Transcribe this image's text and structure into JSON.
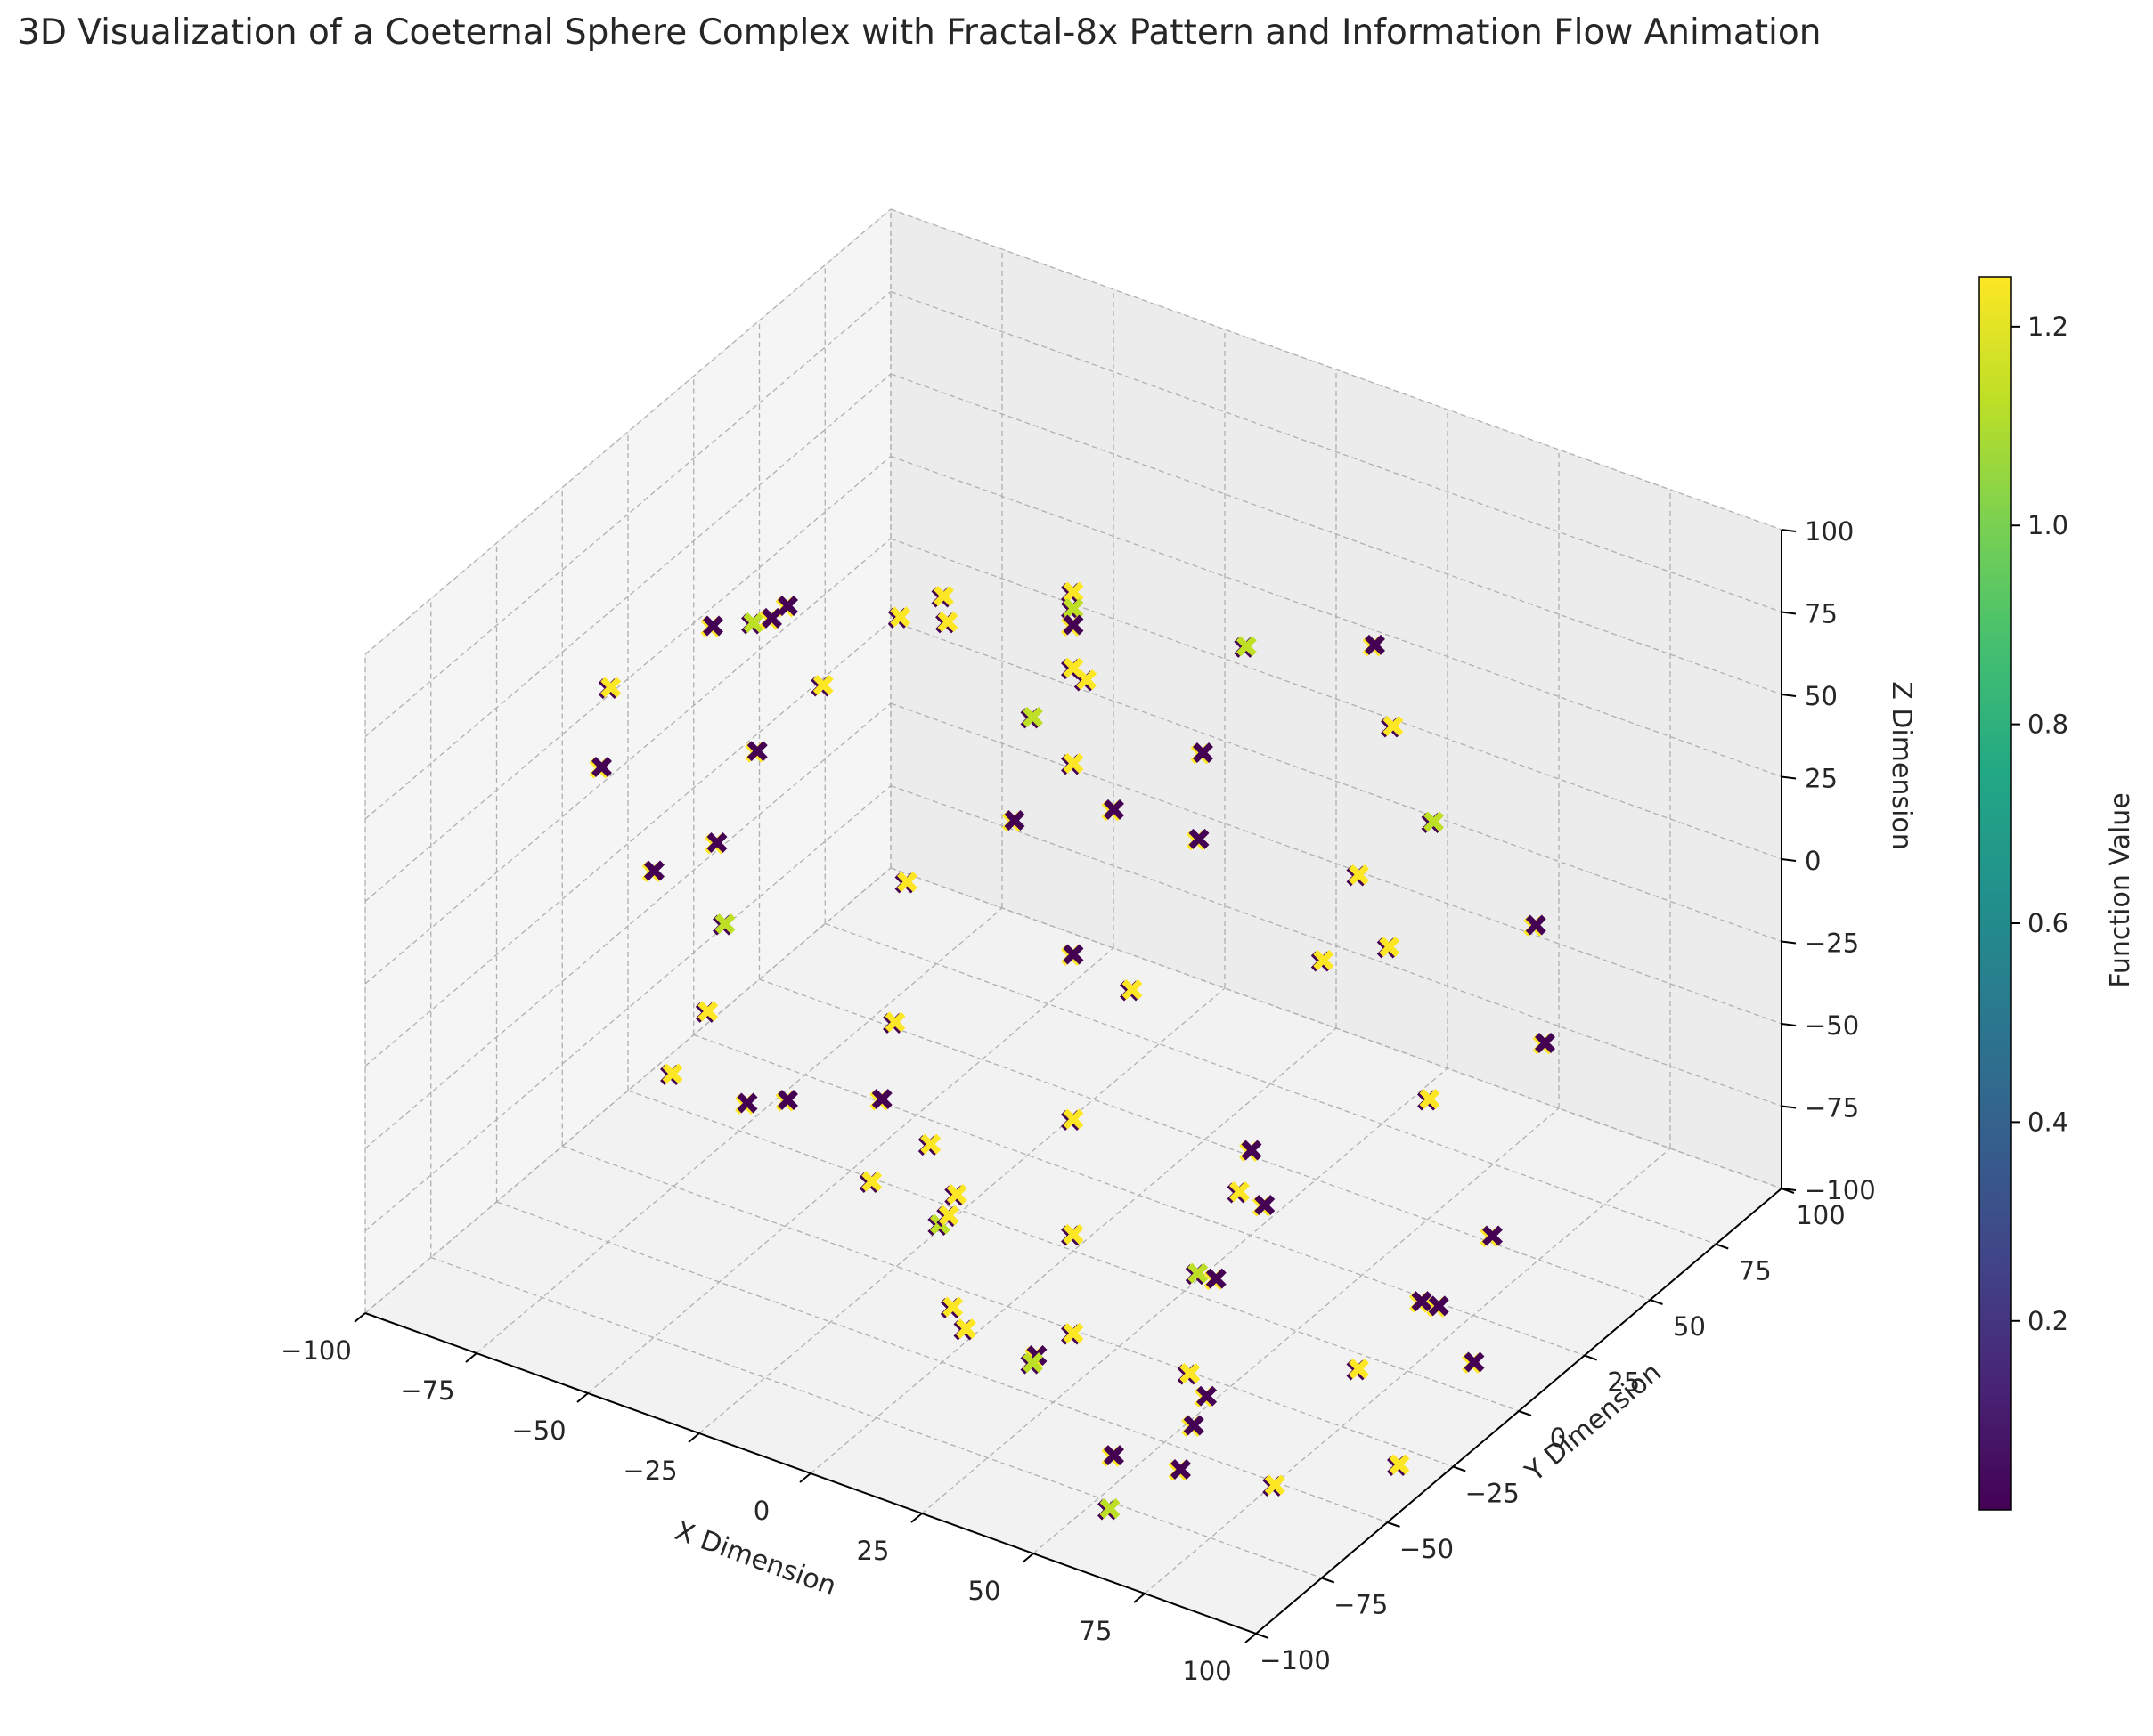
{
  "chart_data": {
    "type": "scatter",
    "title": "3D Visualization of a Coeternal Sphere Complex with Fractal-8x Pattern and Information Flow Animation",
    "xlabel": "X Dimension",
    "ylabel": "Y Dimension",
    "zlabel": "Z Dimension",
    "xlim": [
      -100,
      100
    ],
    "ylim": [
      -100,
      100
    ],
    "zlim": [
      -100,
      100
    ],
    "xticks": [
      "−100",
      "−75",
      "−50",
      "−25",
      "0",
      "25",
      "50",
      "75",
      "100"
    ],
    "yticks": [
      "−100",
      "−75",
      "−50",
      "−25",
      "0",
      "25",
      "50",
      "75",
      "100"
    ],
    "zticks": [
      "−100",
      "−75",
      "−50",
      "−25",
      "0",
      "25",
      "50",
      "75",
      "100"
    ],
    "marker": "x",
    "colormap": "viridis",
    "grid": true,
    "colorbar": {
      "label": "Function Value",
      "ticks": [
        "0.2",
        "0.4",
        "0.6",
        "0.8",
        "1.0",
        "1.2"
      ],
      "range": [
        0.01,
        1.25
      ]
    },
    "points": [
      {
        "x": 0,
        "y": 0,
        "z": 100,
        "v": 1.2
      },
      {
        "x": 0,
        "y": 0,
        "z": 95,
        "v": 1.15
      },
      {
        "x": 0,
        "y": 0,
        "z": 90,
        "v": 0.05
      },
      {
        "x": -50,
        "y": -30,
        "z": 88,
        "v": 0.05
      },
      {
        "x": -30,
        "y": -15,
        "z": 88,
        "v": 1.2
      },
      {
        "x": 30,
        "y": 15,
        "z": 88,
        "v": 1.1
      },
      {
        "x": 50,
        "y": 30,
        "z": 88,
        "v": 0.05
      },
      {
        "x": -60,
        "y": -20,
        "z": 75,
        "v": 1.15
      },
      {
        "x": -35,
        "y": 10,
        "z": 75,
        "v": 1.2
      },
      {
        "x": 0,
        "y": 0,
        "z": 77,
        "v": 1.2
      },
      {
        "x": 35,
        "y": -10,
        "z": 75,
        "v": 0.05
      },
      {
        "x": 60,
        "y": 20,
        "z": 75,
        "v": 1.2
      },
      {
        "x": 0,
        "y": 5,
        "z": 70,
        "v": 1.2
      },
      {
        "x": -75,
        "y": -10,
        "z": 60,
        "v": 0.05
      },
      {
        "x": -70,
        "y": 10,
        "z": 55,
        "v": 0.05
      },
      {
        "x": -40,
        "y": 20,
        "z": 58,
        "v": 1.2
      },
      {
        "x": -15,
        "y": 10,
        "z": 48,
        "v": 1.15
      },
      {
        "x": 15,
        "y": -10,
        "z": 48,
        "v": 0.05
      },
      {
        "x": 40,
        "y": -20,
        "z": 58,
        "v": 0.05
      },
      {
        "x": 75,
        "y": 10,
        "z": 60,
        "v": 1.15
      },
      {
        "x": 70,
        "y": -10,
        "z": 55,
        "v": 1.2
      },
      {
        "x": -95,
        "y": -15,
        "z": 35,
        "v": 1.2
      },
      {
        "x": 95,
        "y": 15,
        "z": 35,
        "v": 0.05
      },
      {
        "x": -65,
        "y": 15,
        "z": 30,
        "v": 1.2
      },
      {
        "x": -68,
        "y": -5,
        "z": 22,
        "v": 0.05
      },
      {
        "x": 0,
        "y": 0,
        "z": 48,
        "v": 1.2
      },
      {
        "x": 65,
        "y": -15,
        "z": 30,
        "v": 1.2
      },
      {
        "x": 68,
        "y": 5,
        "z": 22,
        "v": 1.2
      },
      {
        "x": -100,
        "y": -10,
        "z": 5,
        "v": 0.05
      },
      {
        "x": -25,
        "y": 20,
        "z": 5,
        "v": 0.05
      },
      {
        "x": 25,
        "y": -20,
        "z": 5,
        "v": 1.2
      },
      {
        "x": 100,
        "y": 10,
        "z": 5,
        "v": 0.05
      },
      {
        "x": -80,
        "y": 0,
        "z": -15,
        "v": 0.05
      },
      {
        "x": 0,
        "y": 0,
        "z": -10,
        "v": 0.05
      },
      {
        "x": 80,
        "y": 0,
        "z": -15,
        "v": 1.2
      },
      {
        "x": -100,
        "y": 10,
        "z": -40,
        "v": 0.05
      },
      {
        "x": -55,
        "y": 30,
        "z": -35,
        "v": 1.2
      },
      {
        "x": 55,
        "y": -30,
        "z": -35,
        "v": 1.2
      },
      {
        "x": 100,
        "y": -10,
        "z": -40,
        "v": 0.05
      },
      {
        "x": -40,
        "y": 0,
        "z": -50,
        "v": 1.2
      },
      {
        "x": 40,
        "y": 0,
        "z": -50,
        "v": 0.05
      },
      {
        "x": 0,
        "y": 0,
        "z": -60,
        "v": 1.2
      },
      {
        "x": -90,
        "y": 20,
        "z": -58,
        "v": 1.15
      },
      {
        "x": 90,
        "y": -20,
        "z": -58,
        "v": 0.05
      },
      {
        "x": -85,
        "y": 5,
        "z": -72,
        "v": 1.2
      },
      {
        "x": -40,
        "y": -5,
        "z": -70,
        "v": 0.05
      },
      {
        "x": 40,
        "y": 5,
        "z": -70,
        "v": 0.05
      },
      {
        "x": 85,
        "y": -5,
        "z": -72,
        "v": 0.05
      },
      {
        "x": -90,
        "y": 0,
        "z": -90,
        "v": 1.2
      },
      {
        "x": -70,
        "y": 10,
        "z": -95,
        "v": 0.05
      },
      {
        "x": -35,
        "y": 5,
        "z": -88,
        "v": 1.2
      },
      {
        "x": -25,
        "y": -5,
        "z": -98,
        "v": 1.2
      },
      {
        "x": 0,
        "y": 0,
        "z": -95,
        "v": 1.2
      },
      {
        "x": 25,
        "y": 5,
        "z": -98,
        "v": 1.15
      },
      {
        "x": 35,
        "y": -5,
        "z": -88,
        "v": 0.05
      },
      {
        "x": 70,
        "y": -10,
        "z": -95,
        "v": 1.2
      },
      {
        "x": 90,
        "y": 0,
        "z": -90,
        "v": 0.05
      },
      {
        "x": -85,
        "y": 20,
        "z": -110,
        "v": 0.05
      },
      {
        "x": 85,
        "y": -20,
        "z": -110,
        "v": 1.2
      },
      {
        "x": -35,
        "y": 15,
        "z": -110,
        "v": 1.2
      },
      {
        "x": -37,
        "y": 12,
        "z": -118,
        "v": 1.15
      },
      {
        "x": 35,
        "y": -15,
        "z": -110,
        "v": 1.2
      },
      {
        "x": 37,
        "y": -12,
        "z": -118,
        "v": 0.05
      },
      {
        "x": -60,
        "y": 25,
        "z": -125,
        "v": 1.2
      },
      {
        "x": 0,
        "y": 0,
        "z": -125,
        "v": 1.2
      },
      {
        "x": 60,
        "y": -25,
        "z": -125,
        "v": 1.2
      },
      {
        "x": -30,
        "y": 5,
        "z": -135,
        "v": 1.2
      },
      {
        "x": 30,
        "y": -5,
        "z": -135,
        "v": 0.05
      },
      {
        "x": -30,
        "y": 10,
        "z": -145,
        "v": 1.2
      },
      {
        "x": -15,
        "y": 10,
        "z": -148,
        "v": 1.15
      },
      {
        "x": 15,
        "y": -10,
        "z": -148,
        "v": 0.05
      },
      {
        "x": 30,
        "y": -10,
        "z": -145,
        "v": 0.05
      },
      {
        "x": -20,
        "y": 20,
        "z": -155,
        "v": 0.05
      },
      {
        "x": 20,
        "y": -20,
        "z": -155,
        "v": 1.1
      }
    ]
  }
}
